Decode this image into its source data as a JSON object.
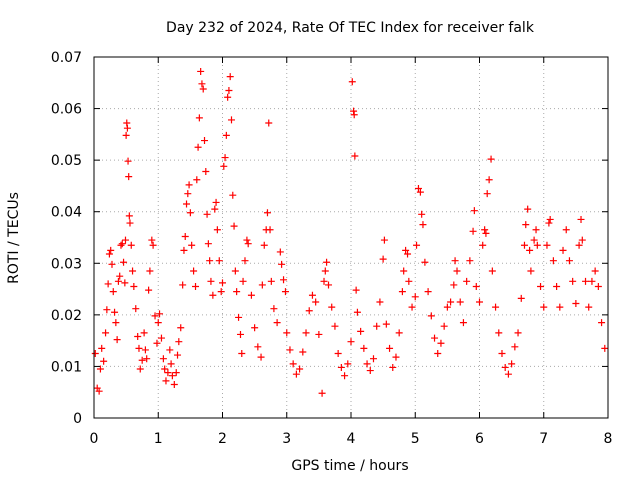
{
  "chart_data": {
    "type": "scatter",
    "title": "Day 232 of 2024, Rate Of TEC Index for receiver falk",
    "xlabel": "GPS time / hours",
    "ylabel": "ROTI / TECUs",
    "xlim": [
      0,
      8
    ],
    "ylim": [
      0,
      0.07
    ],
    "x_ticks": [
      "0",
      "1",
      "2",
      "3",
      "4",
      "5",
      "6",
      "7",
      "8"
    ],
    "y_ticks": [
      "0",
      "0.01",
      "0.02",
      "0.03",
      "0.04",
      "0.05",
      "0.06",
      "0.07"
    ],
    "grid": true,
    "marker": "+",
    "color": "#ff0000",
    "series": [
      {
        "points": [
          [
            0.02,
            0.0125
          ],
          [
            0.05,
            0.0058
          ],
          [
            0.08,
            0.0052
          ],
          [
            0.1,
            0.0095
          ],
          [
            0.12,
            0.0135
          ],
          [
            0.15,
            0.011
          ],
          [
            0.18,
            0.0165
          ],
          [
            0.2,
            0.021
          ],
          [
            0.22,
            0.026
          ],
          [
            0.24,
            0.0318
          ],
          [
            0.26,
            0.0325
          ],
          [
            0.28,
            0.0298
          ],
          [
            0.3,
            0.0245
          ],
          [
            0.32,
            0.0205
          ],
          [
            0.34,
            0.0185
          ],
          [
            0.36,
            0.0152
          ],
          [
            0.38,
            0.0265
          ],
          [
            0.4,
            0.0275
          ],
          [
            0.42,
            0.0335
          ],
          [
            0.44,
            0.0338
          ],
          [
            0.46,
            0.0302
          ],
          [
            0.48,
            0.0262
          ],
          [
            0.49,
            0.0345
          ],
          [
            0.5,
            0.0548
          ],
          [
            0.51,
            0.0572
          ],
          [
            0.52,
            0.0562
          ],
          [
            0.53,
            0.0498
          ],
          [
            0.54,
            0.0468
          ],
          [
            0.55,
            0.0392
          ],
          [
            0.56,
            0.0378
          ],
          [
            0.58,
            0.0335
          ],
          [
            0.6,
            0.0285
          ],
          [
            0.62,
            0.0255
          ],
          [
            0.65,
            0.0212
          ],
          [
            0.68,
            0.0158
          ],
          [
            0.7,
            0.0135
          ],
          [
            0.72,
            0.0095
          ],
          [
            0.75,
            0.0112
          ],
          [
            0.78,
            0.0165
          ],
          [
            0.8,
            0.0132
          ],
          [
            0.82,
            0.0115
          ],
          [
            0.85,
            0.0248
          ],
          [
            0.87,
            0.0285
          ],
          [
            0.9,
            0.0345
          ],
          [
            0.92,
            0.0335
          ],
          [
            0.95,
            0.0198
          ],
          [
            0.98,
            0.0145
          ],
          [
            1.0,
            0.0185
          ],
          [
            1.02,
            0.0202
          ],
          [
            1.05,
            0.0155
          ],
          [
            1.08,
            0.0115
          ],
          [
            1.1,
            0.0095
          ],
          [
            1.12,
            0.0072
          ],
          [
            1.15,
            0.0088
          ],
          [
            1.18,
            0.0132
          ],
          [
            1.2,
            0.0105
          ],
          [
            1.22,
            0.0082
          ],
          [
            1.25,
            0.0065
          ],
          [
            1.28,
            0.0088
          ],
          [
            1.3,
            0.0122
          ],
          [
            1.32,
            0.0148
          ],
          [
            1.35,
            0.0175
          ],
          [
            1.38,
            0.0258
          ],
          [
            1.4,
            0.0325
          ],
          [
            1.42,
            0.0352
          ],
          [
            1.44,
            0.0415
          ],
          [
            1.46,
            0.0435
          ],
          [
            1.48,
            0.0452
          ],
          [
            1.5,
            0.0398
          ],
          [
            1.52,
            0.0335
          ],
          [
            1.55,
            0.0285
          ],
          [
            1.58,
            0.0255
          ],
          [
            1.6,
            0.0462
          ],
          [
            1.62,
            0.0525
          ],
          [
            1.64,
            0.0582
          ],
          [
            1.66,
            0.0672
          ],
          [
            1.68,
            0.0648
          ],
          [
            1.7,
            0.0638
          ],
          [
            1.72,
            0.0538
          ],
          [
            1.74,
            0.0478
          ],
          [
            1.76,
            0.0395
          ],
          [
            1.78,
            0.0338
          ],
          [
            1.8,
            0.0305
          ],
          [
            1.82,
            0.0265
          ],
          [
            1.85,
            0.0238
          ],
          [
            1.88,
            0.0405
          ],
          [
            1.9,
            0.0418
          ],
          [
            1.92,
            0.0365
          ],
          [
            1.95,
            0.0305
          ],
          [
            1.98,
            0.0245
          ],
          [
            2.0,
            0.0262
          ],
          [
            2.02,
            0.0488
          ],
          [
            2.04,
            0.0505
          ],
          [
            2.06,
            0.0548
          ],
          [
            2.08,
            0.0622
          ],
          [
            2.1,
            0.0635
          ],
          [
            2.12,
            0.0662
          ],
          [
            2.14,
            0.0578
          ],
          [
            2.16,
            0.0432
          ],
          [
            2.18,
            0.0372
          ],
          [
            2.2,
            0.0285
          ],
          [
            2.22,
            0.0245
          ],
          [
            2.25,
            0.0195
          ],
          [
            2.28,
            0.0162
          ],
          [
            2.3,
            0.0125
          ],
          [
            2.32,
            0.0265
          ],
          [
            2.35,
            0.0305
          ],
          [
            2.38,
            0.0345
          ],
          [
            2.4,
            0.0338
          ],
          [
            2.45,
            0.0238
          ],
          [
            2.5,
            0.0175
          ],
          [
            2.55,
            0.0138
          ],
          [
            2.6,
            0.0118
          ],
          [
            2.62,
            0.0258
          ],
          [
            2.65,
            0.0335
          ],
          [
            2.68,
            0.0365
          ],
          [
            2.7,
            0.0398
          ],
          [
            2.72,
            0.0572
          ],
          [
            2.74,
            0.0365
          ],
          [
            2.76,
            0.0265
          ],
          [
            2.8,
            0.0212
          ],
          [
            2.85,
            0.0185
          ],
          [
            2.9,
            0.0322
          ],
          [
            2.92,
            0.0298
          ],
          [
            2.95,
            0.0268
          ],
          [
            2.98,
            0.0245
          ],
          [
            3.0,
            0.0165
          ],
          [
            3.05,
            0.0132
          ],
          [
            3.1,
            0.0105
          ],
          [
            3.15,
            0.0085
          ],
          [
            3.2,
            0.0095
          ],
          [
            3.25,
            0.0128
          ],
          [
            3.3,
            0.0165
          ],
          [
            3.35,
            0.0208
          ],
          [
            3.4,
            0.0238
          ],
          [
            3.45,
            0.0225
          ],
          [
            3.5,
            0.0162
          ],
          [
            3.55,
            0.0048
          ],
          [
            3.58,
            0.0265
          ],
          [
            3.6,
            0.0285
          ],
          [
            3.62,
            0.0302
          ],
          [
            3.65,
            0.0258
          ],
          [
            3.7,
            0.0215
          ],
          [
            3.75,
            0.0178
          ],
          [
            3.8,
            0.0125
          ],
          [
            3.85,
            0.0098
          ],
          [
            3.9,
            0.0082
          ],
          [
            3.95,
            0.0105
          ],
          [
            4.0,
            0.0148
          ],
          [
            4.02,
            0.0652
          ],
          [
            4.04,
            0.0595
          ],
          [
            4.05,
            0.0588
          ],
          [
            4.06,
            0.0508
          ],
          [
            4.08,
            0.0248
          ],
          [
            4.1,
            0.0205
          ],
          [
            4.15,
            0.0168
          ],
          [
            4.2,
            0.0135
          ],
          [
            4.25,
            0.0105
          ],
          [
            4.3,
            0.0092
          ],
          [
            4.35,
            0.0115
          ],
          [
            4.4,
            0.0178
          ],
          [
            4.45,
            0.0225
          ],
          [
            4.5,
            0.0308
          ],
          [
            4.52,
            0.0345
          ],
          [
            4.55,
            0.0182
          ],
          [
            4.6,
            0.0135
          ],
          [
            4.65,
            0.0098
          ],
          [
            4.7,
            0.0118
          ],
          [
            4.75,
            0.0165
          ],
          [
            4.8,
            0.0245
          ],
          [
            4.82,
            0.0285
          ],
          [
            4.85,
            0.0325
          ],
          [
            4.88,
            0.0318
          ],
          [
            4.9,
            0.0265
          ],
          [
            4.95,
            0.0215
          ],
          [
            5.0,
            0.0235
          ],
          [
            5.02,
            0.0335
          ],
          [
            5.05,
            0.0445
          ],
          [
            5.08,
            0.0438
          ],
          [
            5.1,
            0.0395
          ],
          [
            5.12,
            0.0375
          ],
          [
            5.15,
            0.0302
          ],
          [
            5.2,
            0.0245
          ],
          [
            5.25,
            0.0198
          ],
          [
            5.3,
            0.0155
          ],
          [
            5.35,
            0.0125
          ],
          [
            5.4,
            0.0145
          ],
          [
            5.45,
            0.0178
          ],
          [
            5.5,
            0.0215
          ],
          [
            5.55,
            0.0225
          ],
          [
            5.6,
            0.0258
          ],
          [
            5.62,
            0.0305
          ],
          [
            5.65,
            0.0285
          ],
          [
            5.7,
            0.0225
          ],
          [
            5.75,
            0.0185
          ],
          [
            5.8,
            0.0265
          ],
          [
            5.85,
            0.0305
          ],
          [
            5.9,
            0.0362
          ],
          [
            5.92,
            0.0402
          ],
          [
            5.95,
            0.0255
          ],
          [
            6.0,
            0.0225
          ],
          [
            6.05,
            0.0335
          ],
          [
            6.08,
            0.0365
          ],
          [
            6.1,
            0.0358
          ],
          [
            6.12,
            0.0435
          ],
          [
            6.15,
            0.0462
          ],
          [
            6.18,
            0.0502
          ],
          [
            6.2,
            0.0285
          ],
          [
            6.25,
            0.0215
          ],
          [
            6.3,
            0.0165
          ],
          [
            6.35,
            0.0125
          ],
          [
            6.4,
            0.0098
          ],
          [
            6.45,
            0.0085
          ],
          [
            6.5,
            0.0105
          ],
          [
            6.55,
            0.0138
          ],
          [
            6.6,
            0.0165
          ],
          [
            6.65,
            0.0232
          ],
          [
            6.7,
            0.0335
          ],
          [
            6.72,
            0.0375
          ],
          [
            6.75,
            0.0405
          ],
          [
            6.78,
            0.0325
          ],
          [
            6.8,
            0.0285
          ],
          [
            6.85,
            0.0345
          ],
          [
            6.88,
            0.0365
          ],
          [
            6.9,
            0.0335
          ],
          [
            6.95,
            0.0255
          ],
          [
            7.0,
            0.0215
          ],
          [
            7.05,
            0.0335
          ],
          [
            7.08,
            0.0378
          ],
          [
            7.1,
            0.0385
          ],
          [
            7.15,
            0.0305
          ],
          [
            7.2,
            0.0255
          ],
          [
            7.25,
            0.0215
          ],
          [
            7.3,
            0.0325
          ],
          [
            7.35,
            0.0365
          ],
          [
            7.4,
            0.0305
          ],
          [
            7.45,
            0.0265
          ],
          [
            7.5,
            0.0222
          ],
          [
            7.55,
            0.0335
          ],
          [
            7.58,
            0.0385
          ],
          [
            7.6,
            0.0345
          ],
          [
            7.65,
            0.0265
          ],
          [
            7.7,
            0.0215
          ],
          [
            7.75,
            0.0265
          ],
          [
            7.8,
            0.0285
          ],
          [
            7.85,
            0.0255
          ],
          [
            7.9,
            0.0185
          ],
          [
            7.95,
            0.0135
          ]
        ]
      }
    ]
  }
}
